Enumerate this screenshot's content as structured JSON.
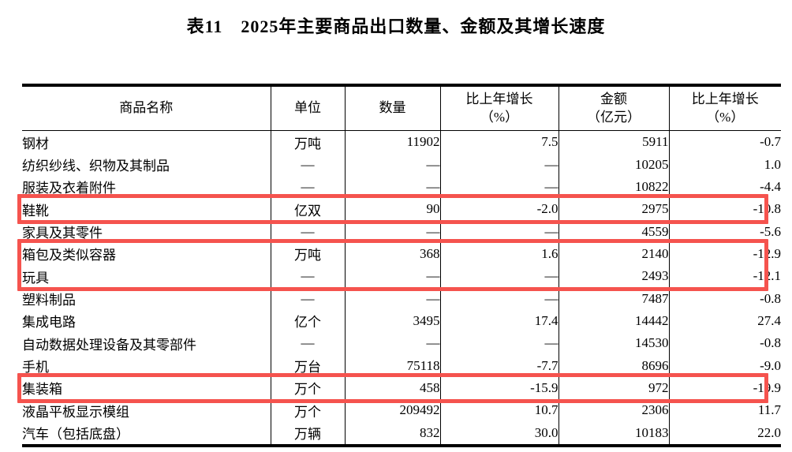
{
  "title": "表11　2025年主要商品出口数量、金额及其增长速度",
  "table": {
    "headers": {
      "name": "商品名称",
      "unit": "单位",
      "qty": "数量",
      "qty_growth": "比上年增长\n（%）",
      "amount": "金额\n（亿元）",
      "amount_growth": "比上年增长\n（%）"
    },
    "rows": [
      {
        "name": "钢材",
        "unit": "万吨",
        "qty": "11902",
        "qty_growth": "7.5",
        "amount": "5911",
        "amount_growth": "-0.7",
        "highlight": false
      },
      {
        "name": "纺织纱线、织物及其制品",
        "unit": "—",
        "qty": "—",
        "qty_growth": "—",
        "amount": "10205",
        "amount_growth": "1.0",
        "highlight": false
      },
      {
        "name": "服装及衣着附件",
        "unit": "—",
        "qty": "—",
        "qty_growth": "—",
        "amount": "10822",
        "amount_growth": "-4.4",
        "highlight": false
      },
      {
        "name": "鞋靴",
        "unit": "亿双",
        "qty": "90",
        "qty_growth": "-2.0",
        "amount": "2975",
        "amount_growth": "-10.8",
        "highlight": true
      },
      {
        "name": "家具及其零件",
        "unit": "—",
        "qty": "—",
        "qty_growth": "—",
        "amount": "4559",
        "amount_growth": "-5.6",
        "highlight": false
      },
      {
        "name": "箱包及类似容器",
        "unit": "万吨",
        "qty": "368",
        "qty_growth": "1.6",
        "amount": "2140",
        "amount_growth": "-12.9",
        "highlight": true
      },
      {
        "name": "玩具",
        "unit": "—",
        "qty": "—",
        "qty_growth": "—",
        "amount": "2493",
        "amount_growth": "-12.1",
        "highlight": true
      },
      {
        "name": "塑料制品",
        "unit": "—",
        "qty": "—",
        "qty_growth": "—",
        "amount": "7487",
        "amount_growth": "-0.8",
        "highlight": false
      },
      {
        "name": "集成电路",
        "unit": "亿个",
        "qty": "3495",
        "qty_growth": "17.4",
        "amount": "14442",
        "amount_growth": "27.4",
        "highlight": false
      },
      {
        "name": "自动数据处理设备及其零部件",
        "unit": "—",
        "qty": "—",
        "qty_growth": "—",
        "amount": "14530",
        "amount_growth": "-0.8",
        "highlight": false
      },
      {
        "name": "手机",
        "unit": "万台",
        "qty": "75118",
        "qty_growth": "-7.7",
        "amount": "8696",
        "amount_growth": "-9.0",
        "highlight": false
      },
      {
        "name": "集装箱",
        "unit": "万个",
        "qty": "458",
        "qty_growth": "-15.9",
        "amount": "972",
        "amount_growth": "-19.9",
        "highlight": true
      },
      {
        "name": "液晶平板显示模组",
        "unit": "万个",
        "qty": "209492",
        "qty_growth": "10.7",
        "amount": "2306",
        "amount_growth": "11.7",
        "highlight": false
      },
      {
        "name": "汽车（包括底盘）",
        "unit": "万辆",
        "qty": "832",
        "qty_growth": "30.0",
        "amount": "10183",
        "amount_growth": "22.0",
        "highlight": false
      }
    ]
  },
  "annotations": {
    "highlight_color": "#f5534e",
    "highlighted_rows": [
      "鞋靴",
      "箱包及类似容器",
      "玩具",
      "集装箱"
    ]
  },
  "colors": {
    "text": "#000000",
    "border": "#000000",
    "background": "#ffffff"
  }
}
